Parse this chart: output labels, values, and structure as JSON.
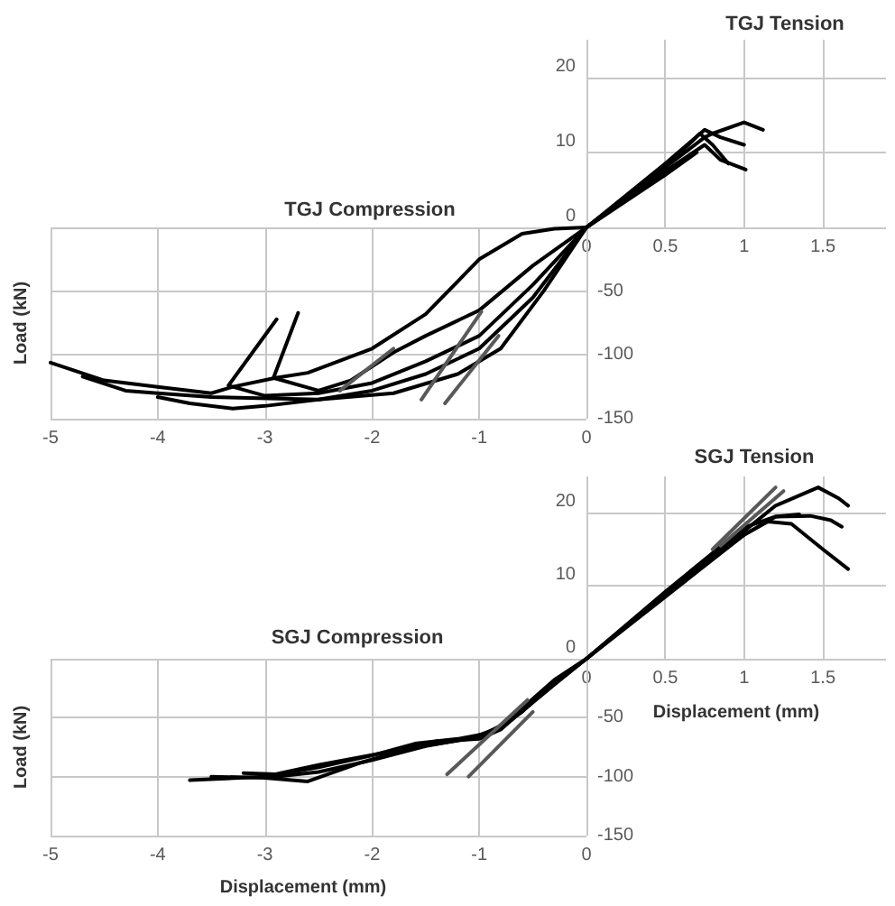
{
  "chart_data": [
    {
      "type": "line",
      "title": "TGJ Tension",
      "xlim": [
        0,
        1.9
      ],
      "ylim": [
        0,
        25
      ],
      "xticks": [
        0,
        0.5,
        1,
        1.5
      ],
      "yticks": [
        0,
        10,
        20
      ],
      "grid": true,
      "series": [
        {
          "color": "#000000",
          "x": [
            0,
            0.5,
            0.75,
            0.8,
            1,
            1.12
          ],
          "values": [
            0,
            8,
            12,
            12.5,
            14,
            13
          ]
        },
        {
          "color": "#000000",
          "x": [
            0,
            0.5,
            0.75,
            0.85,
            1.0
          ],
          "values": [
            0,
            8.5,
            13,
            12,
            11
          ]
        },
        {
          "color": "#000000",
          "x": [
            0,
            0.5,
            0.75,
            0.85,
            1.01
          ],
          "values": [
            0,
            7.5,
            11,
            9,
            7.7
          ]
        },
        {
          "color": "#000000",
          "x": [
            0,
            0.5,
            0.72,
            0.8,
            0.9
          ],
          "values": [
            0,
            8,
            12.5,
            11,
            8.5
          ]
        },
        {
          "color": "#000000",
          "x": [
            0,
            0.5,
            0.7
          ],
          "values": [
            0,
            7,
            10
          ]
        }
      ]
    },
    {
      "type": "line",
      "title": "TGJ Compression",
      "ylabel": "Load (kN)",
      "xlim": [
        -5,
        0
      ],
      "ylim": [
        -150,
        0
      ],
      "xticks": [
        -5,
        -4,
        -3,
        -2,
        -1,
        0
      ],
      "yticks": [
        {
          "value": 0,
          "label": null
        },
        -50,
        -100,
        -150
      ],
      "grid": true,
      "series": [
        {
          "color": "#000000",
          "x": [
            0,
            -0.3,
            -0.6,
            -1,
            -1.5,
            -2,
            -2.6,
            -2.9,
            -3.3,
            -3.5,
            -4,
            -4.5,
            -5
          ],
          "values": [
            0,
            -1,
            -5,
            -25,
            -68,
            -95,
            -114,
            -118,
            -125,
            -130,
            -125,
            -120,
            -106
          ]
        },
        {
          "color": "#000000",
          "x": [
            0,
            -0.5,
            -1,
            -1.5,
            -1.8,
            -2.2,
            -2.5,
            -2.92,
            -2.69
          ],
          "values": [
            0,
            -30,
            -65,
            -85,
            -98,
            -120,
            -128,
            -118,
            -67
          ]
        },
        {
          "color": "#000000",
          "x": [
            0,
            -0.5,
            -1,
            -1.5,
            -2,
            -2.5,
            -3,
            -3.34,
            -2.89
          ],
          "values": [
            0,
            -45,
            -85,
            -105,
            -122,
            -130,
            -132,
            -124,
            -72
          ]
        },
        {
          "color": "#000000",
          "x": [
            0,
            -0.5,
            -1,
            -1.5,
            -2,
            -2.5,
            -3,
            -3.3,
            -3.7,
            -4
          ],
          "values": [
            0,
            -55,
            -95,
            -115,
            -128,
            -135,
            -140,
            -142,
            -138,
            -133
          ]
        },
        {
          "color": "#000000",
          "x": [
            0,
            -0.4,
            -0.8,
            -1.2,
            -1.8,
            -2.5,
            -3.5,
            -4,
            -4.3,
            -4.7
          ],
          "values": [
            0,
            -50,
            -95,
            -115,
            -130,
            -135,
            -133,
            -130,
            -128,
            -117
          ]
        },
        {
          "color": "#595959",
          "x": [
            -0.82,
            -1.32
          ],
          "values": [
            -85,
            -138
          ]
        },
        {
          "color": "#595959",
          "x": [
            -0.98,
            -1.54
          ],
          "values": [
            -66,
            -135
          ]
        },
        {
          "color": "#595959",
          "x": [
            -1.8,
            -2.3
          ],
          "values": [
            -95,
            -128
          ]
        }
      ]
    },
    {
      "type": "line",
      "title": "SGJ Tension",
      "xlabel": "Displacement (mm)",
      "xlim": [
        0,
        1.9
      ],
      "ylim": [
        0,
        25
      ],
      "xticks": [
        0,
        0.5,
        1,
        1.5
      ],
      "yticks": [
        0,
        10,
        20
      ],
      "grid": true,
      "series": [
        {
          "color": "#000000",
          "x": [
            0,
            0.5,
            1,
            1.2,
            1.47,
            1.6,
            1.66
          ],
          "values": [
            0,
            9,
            17.5,
            21,
            23.5,
            22,
            21
          ]
        },
        {
          "color": "#000000",
          "x": [
            0,
            0.5,
            1,
            1.2,
            1.42,
            1.55,
            1.62
          ],
          "values": [
            0,
            8.5,
            17,
            19.5,
            19.6,
            19,
            18.1
          ]
        },
        {
          "color": "#000000",
          "x": [
            0,
            0.5,
            1,
            1.15,
            1.3,
            1.5,
            1.66
          ],
          "values": [
            0,
            8.8,
            17,
            18.8,
            18.5,
            15,
            12.3
          ]
        },
        {
          "color": "#000000",
          "x": [
            0,
            0.5,
            1,
            1.2,
            1.35
          ],
          "values": [
            0,
            9.2,
            18,
            19.5,
            19.8
          ]
        },
        {
          "color": "#595959",
          "x": [
            0.8,
            1.2
          ],
          "values": [
            15,
            23.5
          ]
        },
        {
          "color": "#595959",
          "x": [
            0.85,
            1.25
          ],
          "values": [
            15.5,
            23
          ]
        }
      ]
    },
    {
      "type": "line",
      "title": "SGJ Compression",
      "xlabel": "Displacement (mm)",
      "ylabel": "Load (kN)",
      "xlim": [
        -5,
        0
      ],
      "ylim": [
        -150,
        0
      ],
      "xticks": [
        -5,
        -4,
        -3,
        -2,
        -1,
        0
      ],
      "yticks": [
        {
          "value": 0,
          "label": null
        },
        -50,
        -100,
        -150
      ],
      "grid": true,
      "series": [
        {
          "color": "#000000",
          "x": [
            0,
            -0.3,
            -0.6,
            -0.9,
            -1.2,
            -1.6,
            -2,
            -2.5,
            -3,
            -3.7
          ],
          "values": [
            0,
            -20,
            -45,
            -63,
            -68,
            -72,
            -82,
            -92,
            -100,
            -103
          ]
        },
        {
          "color": "#000000",
          "x": [
            0,
            -0.3,
            -0.7,
            -1,
            -1.5,
            -2,
            -2.5,
            -3,
            -3.5
          ],
          "values": [
            0,
            -22,
            -52,
            -66,
            -74,
            -86,
            -96,
            -101,
            -100
          ]
        },
        {
          "color": "#000000",
          "x": [
            0,
            -0.3,
            -0.8,
            -1.1,
            -1.6,
            -2.1,
            -2.6,
            -3.0
          ],
          "values": [
            0,
            -18,
            -58,
            -68,
            -75,
            -88,
            -104,
            -101
          ]
        },
        {
          "color": "#000000",
          "x": [
            0,
            -0.4,
            -0.8,
            -1,
            -1.4,
            -1.9,
            -2.5,
            -2.9,
            -3.2
          ],
          "values": [
            0,
            -28,
            -60,
            -68,
            -70,
            -80,
            -90,
            -98,
            -97
          ]
        },
        {
          "color": "#595959",
          "x": [
            -0.55,
            -1.3
          ],
          "values": [
            -35,
            -98
          ]
        },
        {
          "color": "#595959",
          "x": [
            -0.5,
            -1.1
          ],
          "values": [
            -45,
            -100
          ]
        }
      ]
    }
  ]
}
